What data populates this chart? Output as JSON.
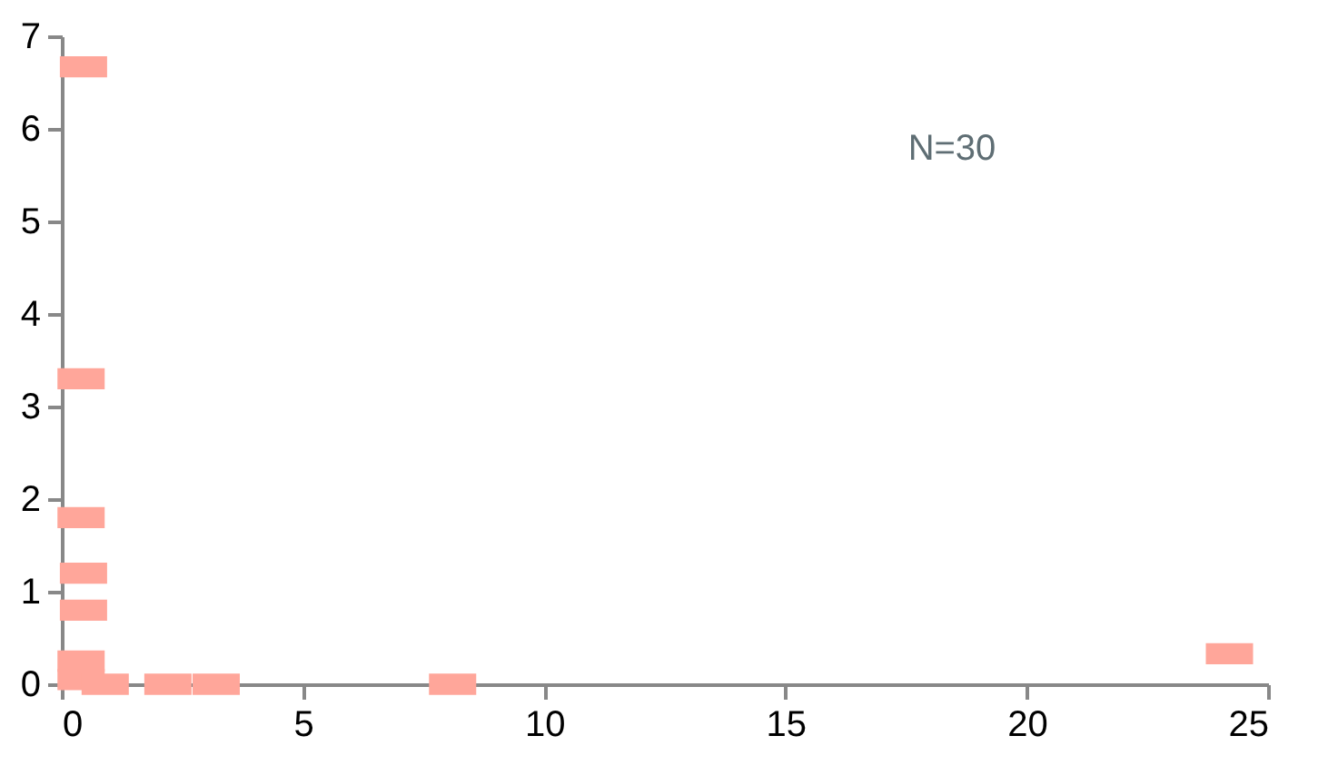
{
  "chart_data": {
    "type": "scatter",
    "marker": "square",
    "grid": false,
    "annotations": [
      "N=30"
    ],
    "xlim": [
      0,
      25
    ],
    "xticks": [
      0,
      5,
      10,
      15,
      20,
      25
    ],
    "ylim": [
      0,
      7
    ],
    "yticks": [
      0,
      1,
      2,
      3,
      4,
      5,
      6,
      7
    ],
    "series": [
      {
        "color": "#ffa69a",
        "x": [
          0.45,
          0.4,
          0.4,
          0.45,
          0.45,
          0.4,
          0.4,
          0.9,
          2.2,
          3.2,
          8.1,
          24.2
        ],
        "values": [
          6.67,
          3.3,
          1.8,
          1.2,
          0.8,
          0.25,
          0.05,
          0,
          0,
          0,
          0,
          0.33
        ]
      }
    ]
  }
}
